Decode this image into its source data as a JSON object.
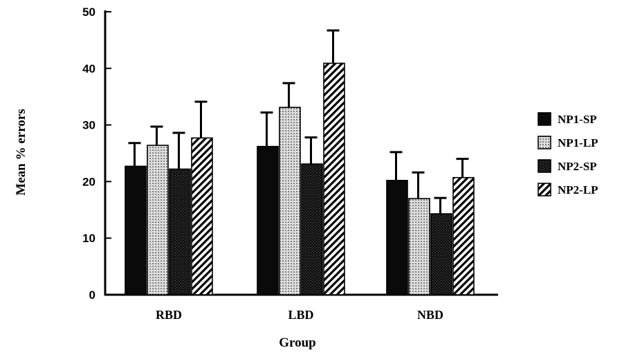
{
  "chart_data": {
    "type": "bar",
    "title": "",
    "xlabel": "Group",
    "ylabel": "Mean % errors",
    "ylim": [
      0,
      50
    ],
    "yticks": [
      0,
      10,
      20,
      30,
      40,
      50
    ],
    "categories": [
      "RBD",
      "LBD",
      "NBD"
    ],
    "series": [
      {
        "name": "NP1-SP",
        "values": [
          22.7,
          26.2,
          20.2
        ],
        "errors": [
          4.1,
          6.0,
          5.0
        ],
        "fill": "solid",
        "color": "#0a0a0a"
      },
      {
        "name": "NP1-LP",
        "values": [
          26.4,
          33.1,
          17.0
        ],
        "errors": [
          3.3,
          4.3,
          4.6
        ],
        "fill": "dots",
        "color": "#bdbdbd"
      },
      {
        "name": "NP2-SP",
        "values": [
          22.2,
          23.1,
          14.3
        ],
        "errors": [
          6.4,
          4.7,
          2.8
        ],
        "fill": "dark-stipple",
        "color": "#2a2a2a"
      },
      {
        "name": "NP2-LP",
        "values": [
          27.7,
          40.9,
          20.7
        ],
        "errors": [
          6.4,
          5.8,
          3.3
        ],
        "fill": "hatch",
        "color": "#000000"
      }
    ],
    "legend_position": "right",
    "grid": false
  }
}
